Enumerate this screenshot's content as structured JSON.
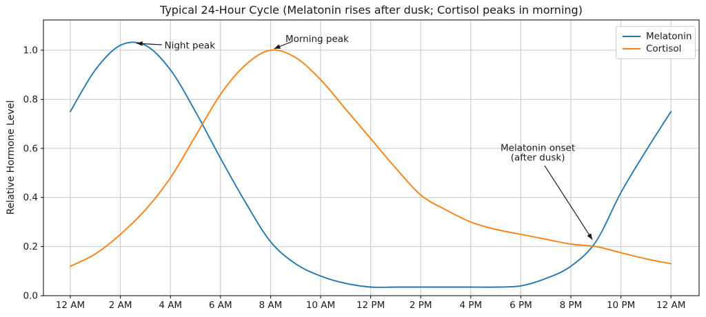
{
  "chart_data": {
    "type": "line",
    "title": "Typical 24-Hour Cycle (Melatonin rises after dusk; Cortisol peaks in morning)",
    "xlabel": "",
    "ylabel": "Relative Hormone Level",
    "x_hours": [
      0,
      1,
      2,
      3,
      4,
      5,
      6,
      7,
      8,
      9,
      10,
      11,
      12,
      13,
      14,
      15,
      16,
      17,
      18,
      19,
      20,
      21,
      22,
      23,
      24
    ],
    "x_tick_hours": [
      0,
      2,
      4,
      6,
      8,
      10,
      12,
      14,
      16,
      18,
      20,
      22,
      24
    ],
    "x_tick_labels": [
      "12 AM",
      "2 AM",
      "4 AM",
      "6 AM",
      "8 AM",
      "10 AM",
      "12 PM",
      "2 PM",
      "4 PM",
      "6 PM",
      "8 PM",
      "10 PM",
      "12 AM"
    ],
    "y_tick_labels": [
      "0.0",
      "0.2",
      "0.4",
      "0.6",
      "0.8",
      "1.0"
    ],
    "y_tick_values": [
      0.0,
      0.2,
      0.4,
      0.6,
      0.8,
      1.0
    ],
    "ylim": [
      0,
      1.123
    ],
    "xlim": [
      -1.07,
      25.13
    ],
    "grid": true,
    "legend": {
      "position": "upper right",
      "entries": [
        "Melatonin",
        "Cortisol"
      ]
    },
    "series": [
      {
        "name": "Melatonin",
        "color": "#1f77b4",
        "values": [
          0.75,
          0.92,
          1.02,
          1.02,
          0.92,
          0.75,
          0.56,
          0.38,
          0.22,
          0.13,
          0.08,
          0.05,
          0.035,
          0.035,
          0.035,
          0.035,
          0.035,
          0.035,
          0.04,
          0.07,
          0.12,
          0.22,
          0.42,
          0.59,
          0.75
        ]
      },
      {
        "name": "Cortisol",
        "color": "#ff7f0e",
        "values": [
          0.12,
          0.17,
          0.25,
          0.35,
          0.48,
          0.65,
          0.82,
          0.94,
          1.0,
          0.97,
          0.88,
          0.76,
          0.64,
          0.52,
          0.41,
          0.35,
          0.3,
          0.27,
          0.25,
          0.23,
          0.21,
          0.2,
          0.175,
          0.15,
          0.13
        ]
      }
    ],
    "annotations": [
      {
        "lines": [
          "Night peak"
        ],
        "anchor": "start",
        "text_hour": 3.76,
        "text_value": 1.02,
        "arrow": {
          "from_hour": 3.66,
          "from_value": 1.022,
          "to_hour": 2.64,
          "to_value": 1.028
        }
      },
      {
        "lines": [
          "Morning peak"
        ],
        "anchor": "middle",
        "text_hour": 9.86,
        "text_value": 1.046,
        "arrow": {
          "from_hour": 8.85,
          "from_value": 1.035,
          "to_hour": 8.14,
          "to_value": 1.006
        }
      },
      {
        "lines": [
          "Melatonin onset",
          "(after dusk)"
        ],
        "anchor": "middle",
        "text_hour": 18.68,
        "text_value": 0.582,
        "arrow": {
          "from_hour": 18.95,
          "from_value": 0.53,
          "to_hour": 20.86,
          "to_value": 0.228
        }
      }
    ],
    "colors": {
      "grid": "#c6c6c6",
      "axes": "#000000",
      "text": "#1a1a1a",
      "annotation_arrow": "#1a1a1a"
    }
  }
}
